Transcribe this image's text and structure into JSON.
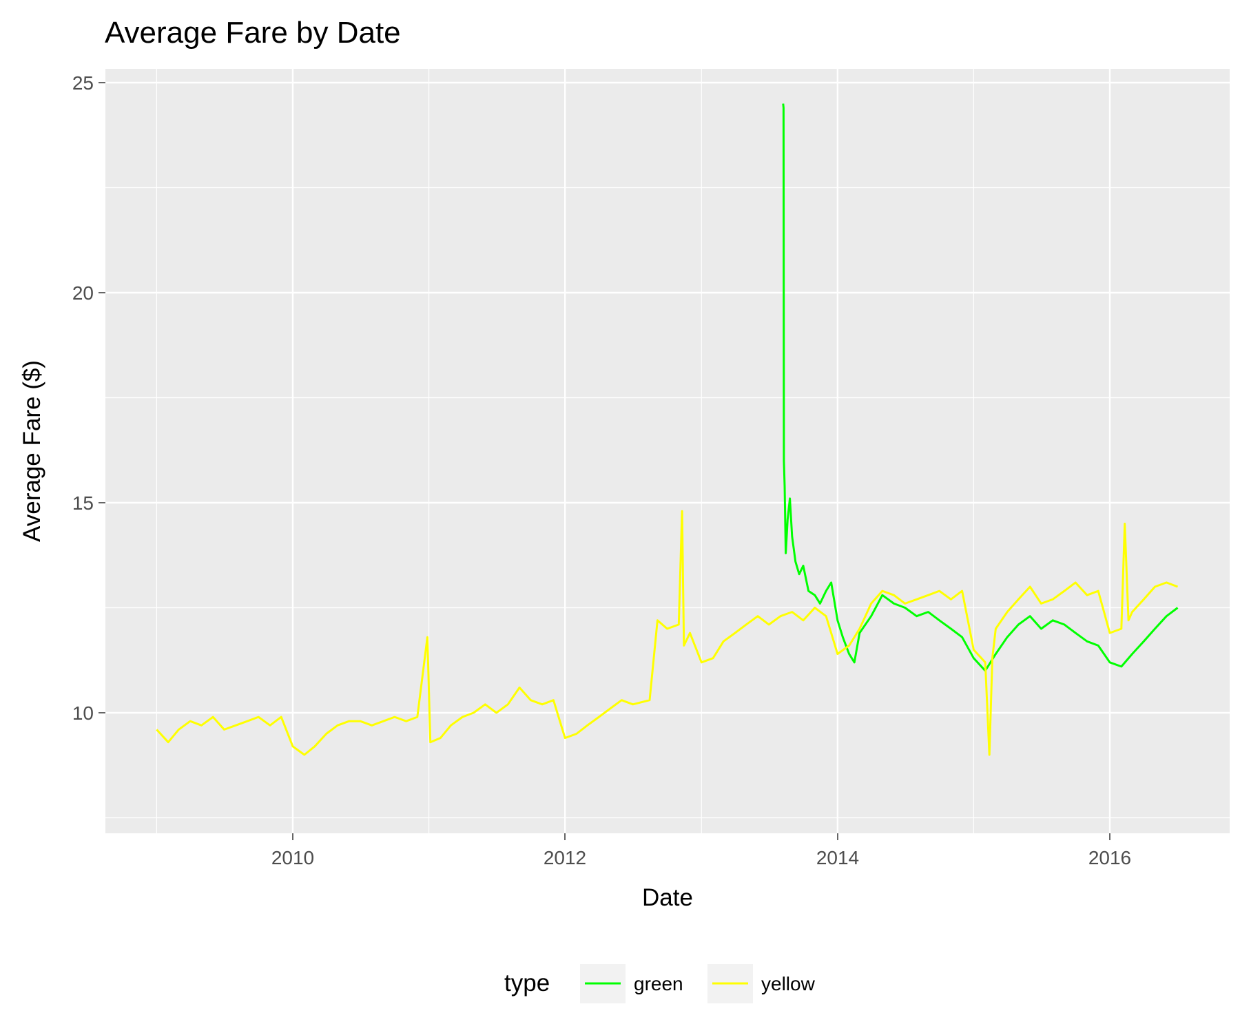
{
  "chart_data": {
    "type": "line",
    "title": "Average Fare by Date",
    "xlabel": "Date",
    "ylabel": "Average Fare ($)",
    "x_ticks": [
      "2010",
      "2012",
      "2014",
      "2016"
    ],
    "y_ticks": [
      "10",
      "15",
      "20",
      "25"
    ],
    "xlim": [
      "2008-09-15",
      "2016-12-31"
    ],
    "ylim": [
      7.0,
      25.0
    ],
    "grid": true,
    "legend": {
      "title": "type",
      "position": "bottom"
    },
    "series": [
      {
        "name": "green",
        "color": "#00ff00",
        "points": [
          [
            "2013-08-08",
            24.5
          ],
          [
            "2013-08-09",
            24.4
          ],
          [
            "2013-08-10",
            16.0
          ],
          [
            "2013-08-12",
            15.4
          ],
          [
            "2013-08-15",
            13.8
          ],
          [
            "2013-08-20",
            14.6
          ],
          [
            "2013-08-26",
            15.1
          ],
          [
            "2013-09-01",
            14.2
          ],
          [
            "2013-09-10",
            13.6
          ],
          [
            "2013-09-20",
            13.3
          ],
          [
            "2013-10-01",
            13.5
          ],
          [
            "2013-10-15",
            12.9
          ],
          [
            "2013-11-01",
            12.8
          ],
          [
            "2013-11-15",
            12.6
          ],
          [
            "2013-12-01",
            12.9
          ],
          [
            "2013-12-15",
            13.1
          ],
          [
            "2014-01-01",
            12.2
          ],
          [
            "2014-01-15",
            11.8
          ],
          [
            "2014-02-01",
            11.4
          ],
          [
            "2014-02-15",
            11.2
          ],
          [
            "2014-03-01",
            11.9
          ],
          [
            "2014-04-01",
            12.3
          ],
          [
            "2014-05-01",
            12.8
          ],
          [
            "2014-06-01",
            12.6
          ],
          [
            "2014-07-01",
            12.5
          ],
          [
            "2014-08-01",
            12.3
          ],
          [
            "2014-09-01",
            12.4
          ],
          [
            "2014-10-01",
            12.2
          ],
          [
            "2014-11-01",
            12.0
          ],
          [
            "2014-12-01",
            11.8
          ],
          [
            "2015-01-01",
            11.3
          ],
          [
            "2015-02-01",
            11.0
          ],
          [
            "2015-03-01",
            11.4
          ],
          [
            "2015-04-01",
            11.8
          ],
          [
            "2015-05-01",
            12.1
          ],
          [
            "2015-06-01",
            12.3
          ],
          [
            "2015-07-01",
            12.0
          ],
          [
            "2015-08-01",
            12.2
          ],
          [
            "2015-09-01",
            12.1
          ],
          [
            "2015-10-01",
            11.9
          ],
          [
            "2015-11-01",
            11.7
          ],
          [
            "2015-12-01",
            11.6
          ],
          [
            "2016-01-01",
            11.2
          ],
          [
            "2016-02-01",
            11.1
          ],
          [
            "2016-03-01",
            11.4
          ],
          [
            "2016-04-01",
            11.7
          ],
          [
            "2016-05-01",
            12.0
          ],
          [
            "2016-06-01",
            12.3
          ],
          [
            "2016-07-01",
            12.5
          ]
        ]
      },
      {
        "name": "yellow",
        "color": "#ffff00",
        "points": [
          [
            "2009-01-01",
            9.6
          ],
          [
            "2009-02-01",
            9.3
          ],
          [
            "2009-03-01",
            9.6
          ],
          [
            "2009-04-01",
            9.8
          ],
          [
            "2009-05-01",
            9.7
          ],
          [
            "2009-06-01",
            9.9
          ],
          [
            "2009-07-01",
            9.6
          ],
          [
            "2009-08-01",
            9.7
          ],
          [
            "2009-09-01",
            9.8
          ],
          [
            "2009-10-01",
            9.9
          ],
          [
            "2009-11-01",
            9.7
          ],
          [
            "2009-12-01",
            9.9
          ],
          [
            "2010-01-01",
            9.2
          ],
          [
            "2010-02-01",
            9.0
          ],
          [
            "2010-03-01",
            9.2
          ],
          [
            "2010-04-01",
            9.5
          ],
          [
            "2010-05-01",
            9.7
          ],
          [
            "2010-06-01",
            9.8
          ],
          [
            "2010-07-01",
            9.8
          ],
          [
            "2010-08-01",
            9.7
          ],
          [
            "2010-09-01",
            9.8
          ],
          [
            "2010-10-01",
            9.9
          ],
          [
            "2010-11-01",
            9.8
          ],
          [
            "2010-12-01",
            9.9
          ],
          [
            "2010-12-28",
            11.8
          ],
          [
            "2011-01-05",
            9.3
          ],
          [
            "2011-02-01",
            9.4
          ],
          [
            "2011-03-01",
            9.7
          ],
          [
            "2011-04-01",
            9.9
          ],
          [
            "2011-05-01",
            10.0
          ],
          [
            "2011-06-01",
            10.2
          ],
          [
            "2011-07-01",
            10.0
          ],
          [
            "2011-08-01",
            10.2
          ],
          [
            "2011-09-01",
            10.6
          ],
          [
            "2011-10-01",
            10.3
          ],
          [
            "2011-11-01",
            10.2
          ],
          [
            "2011-12-01",
            10.3
          ],
          [
            "2012-01-01",
            9.4
          ],
          [
            "2012-02-01",
            9.5
          ],
          [
            "2012-03-01",
            9.7
          ],
          [
            "2012-04-01",
            9.9
          ],
          [
            "2012-05-01",
            10.1
          ],
          [
            "2012-06-01",
            10.3
          ],
          [
            "2012-07-01",
            10.2
          ],
          [
            "2012-08-15",
            10.3
          ],
          [
            "2012-09-05",
            12.2
          ],
          [
            "2012-10-01",
            12.0
          ],
          [
            "2012-11-01",
            12.1
          ],
          [
            "2012-11-10",
            14.8
          ],
          [
            "2012-11-15",
            11.6
          ],
          [
            "2012-12-01",
            11.9
          ],
          [
            "2013-01-01",
            11.2
          ],
          [
            "2013-02-01",
            11.3
          ],
          [
            "2013-03-01",
            11.7
          ],
          [
            "2013-04-01",
            11.9
          ],
          [
            "2013-05-01",
            12.1
          ],
          [
            "2013-06-01",
            12.3
          ],
          [
            "2013-07-01",
            12.1
          ],
          [
            "2013-08-01",
            12.3
          ],
          [
            "2013-09-01",
            12.4
          ],
          [
            "2013-10-01",
            12.2
          ],
          [
            "2013-11-01",
            12.5
          ],
          [
            "2013-12-01",
            12.3
          ],
          [
            "2014-01-01",
            11.4
          ],
          [
            "2014-02-01",
            11.6
          ],
          [
            "2014-03-01",
            12.0
          ],
          [
            "2014-04-01",
            12.6
          ],
          [
            "2014-05-01",
            12.9
          ],
          [
            "2014-06-01",
            12.8
          ],
          [
            "2014-07-01",
            12.6
          ],
          [
            "2014-08-01",
            12.7
          ],
          [
            "2014-09-01",
            12.8
          ],
          [
            "2014-10-01",
            12.9
          ],
          [
            "2014-11-01",
            12.7
          ],
          [
            "2014-12-01",
            12.9
          ],
          [
            "2015-01-01",
            11.5
          ],
          [
            "2015-02-01",
            11.2
          ],
          [
            "2015-02-12",
            9.0
          ],
          [
            "2015-02-20",
            11.3
          ],
          [
            "2015-03-01",
            12.0
          ],
          [
            "2015-04-01",
            12.4
          ],
          [
            "2015-05-01",
            12.7
          ],
          [
            "2015-06-01",
            13.0
          ],
          [
            "2015-07-01",
            12.6
          ],
          [
            "2015-08-01",
            12.7
          ],
          [
            "2015-09-01",
            12.9
          ],
          [
            "2015-10-01",
            13.1
          ],
          [
            "2015-11-01",
            12.8
          ],
          [
            "2015-12-01",
            12.9
          ],
          [
            "2016-01-01",
            11.9
          ],
          [
            "2016-02-01",
            12.0
          ],
          [
            "2016-02-10",
            14.5
          ],
          [
            "2016-02-20",
            12.2
          ],
          [
            "2016-03-01",
            12.4
          ],
          [
            "2016-04-01",
            12.7
          ],
          [
            "2016-05-01",
            13.0
          ],
          [
            "2016-06-01",
            13.1
          ],
          [
            "2016-07-01",
            13.0
          ]
        ]
      }
    ]
  }
}
